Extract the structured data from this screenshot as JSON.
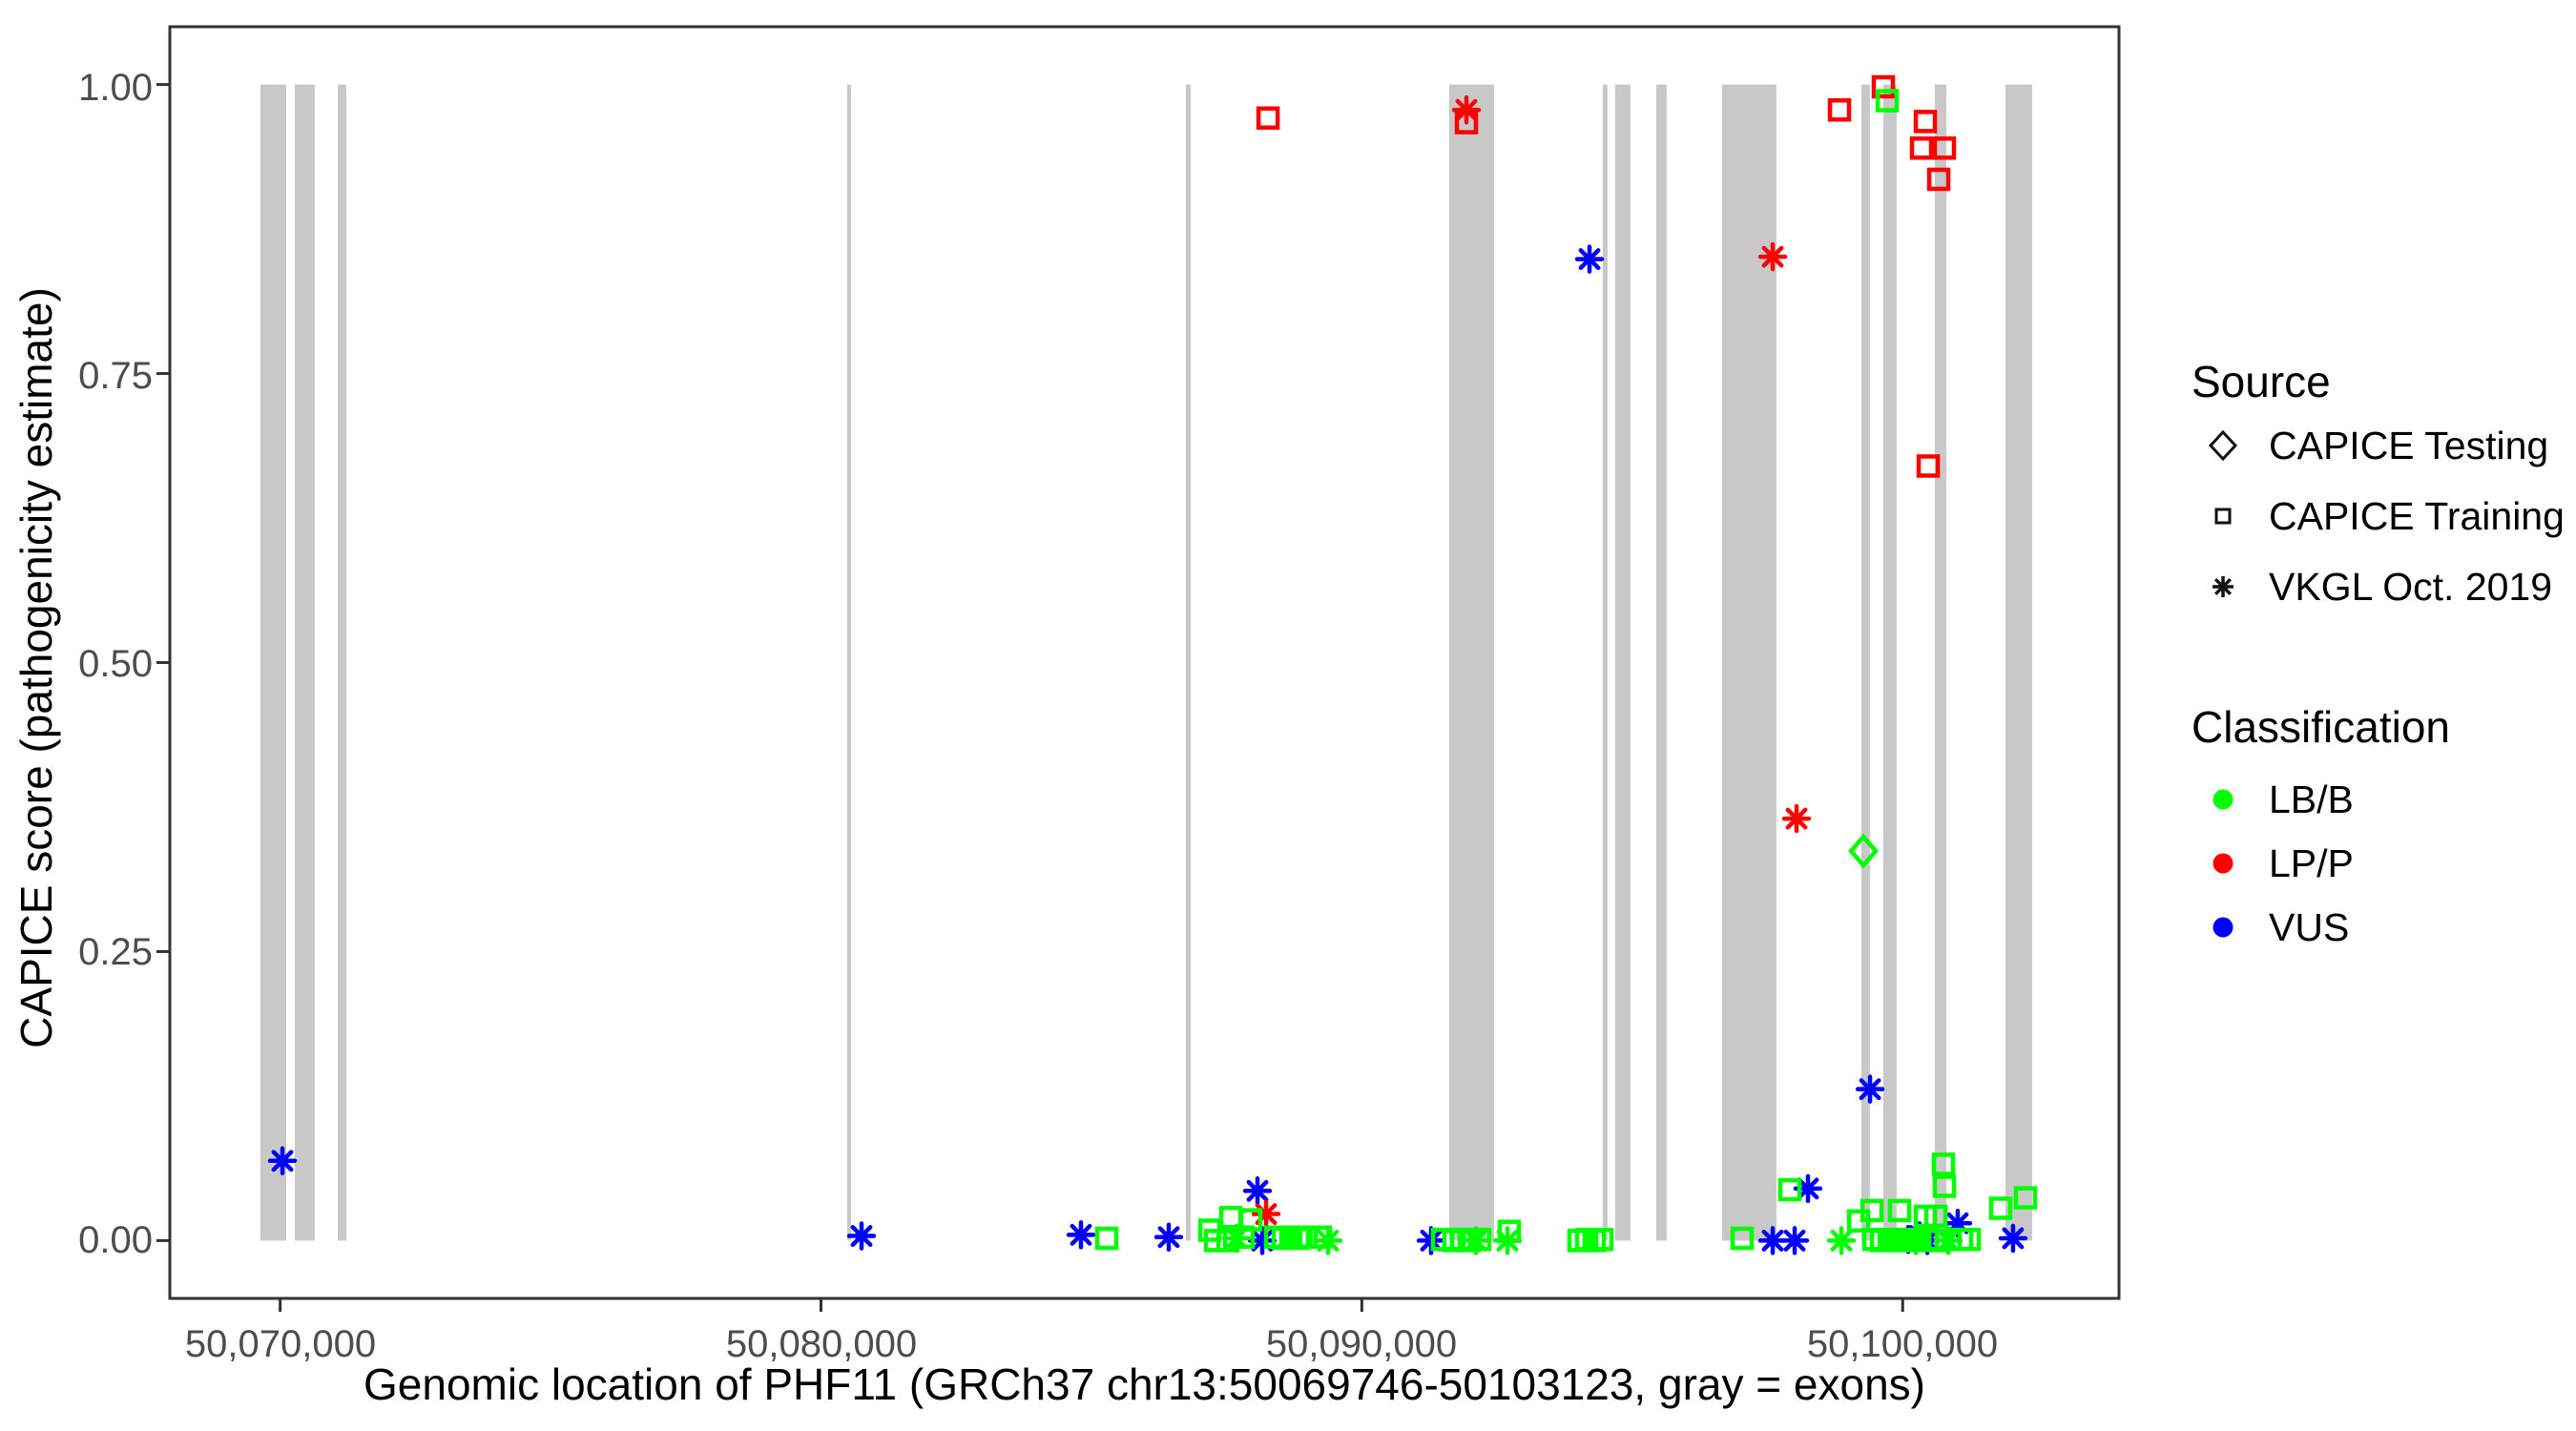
{
  "colors": {
    "lbb": "#00FF00",
    "lpp": "#FF0000",
    "vus": "#0000FF",
    "exon": "#C8C8C8",
    "axis_text": "#4D4D4D",
    "axis_line": "#333333",
    "legend_symbol": "#111111"
  },
  "legend": {
    "source": {
      "title": "Source",
      "items": [
        {
          "label": "CAPICE Testing",
          "symbol": "diamond-icon"
        },
        {
          "label": "CAPICE Training",
          "symbol": "square-icon"
        },
        {
          "label": "VKGL Oct. 2019",
          "symbol": "asterisk-icon"
        }
      ]
    },
    "classification": {
      "title": "Classification",
      "items": [
        {
          "label": "LB/B",
          "color": "#00FF00"
        },
        {
          "label": "LP/P",
          "color": "#FF0000"
        },
        {
          "label": "VUS",
          "color": "#0000FF"
        }
      ]
    }
  },
  "chart_data": {
    "type": "scatter",
    "title": "",
    "xlabel": "Genomic location of PHF11 (GRCh37 chr13:50069746-50103123, gray = exons)",
    "ylabel": "CAPICE score (pathogenicity estimate)",
    "xlim": [
      50067960,
      50104000
    ],
    "ylim": [
      -0.05,
      1.05
    ],
    "grid": false,
    "legend_position": "right",
    "x_ticks": [
      {
        "value": 50070000,
        "label": "50,070,000"
      },
      {
        "value": 50080000,
        "label": "50,080,000"
      },
      {
        "value": 50090000,
        "label": "50,090,000"
      },
      {
        "value": 50100000,
        "label": "50,100,000"
      }
    ],
    "y_ticks": [
      {
        "value": 1.0,
        "label": "1.00"
      },
      {
        "value": 0.75,
        "label": "0.75"
      },
      {
        "value": 0.5,
        "label": "0.50"
      },
      {
        "value": 0.25,
        "label": "0.25"
      },
      {
        "value": 0.0,
        "label": "0.00"
      }
    ],
    "exons": [
      [
        50069636,
        50070112
      ],
      [
        50070271,
        50070641
      ],
      [
        50071065,
        50071223
      ],
      [
        50080484,
        50080555
      ],
      [
        50086746,
        50086834
      ],
      [
        50091615,
        50092444
      ],
      [
        50094455,
        50094543
      ],
      [
        50094684,
        50094966
      ],
      [
        50095443,
        50095637
      ],
      [
        50096660,
        50097665
      ],
      [
        50099235,
        50099394
      ],
      [
        50099641,
        50099888
      ],
      [
        50100595,
        50100807
      ],
      [
        50101900,
        50102394
      ]
    ],
    "points": [
      {
        "bp": 50070042,
        "score": 0.069,
        "source": "vkgl",
        "cls": "VUS"
      },
      {
        "bp": 50080750,
        "score": 0.004,
        "source": "vkgl",
        "cls": "VUS"
      },
      {
        "bp": 50084807,
        "score": 0.005,
        "source": "vkgl",
        "cls": "VUS"
      },
      {
        "bp": 50086430,
        "score": 0.003,
        "source": "vkgl",
        "cls": "VUS"
      },
      {
        "bp": 50088071,
        "score": 0.043,
        "source": "vkgl",
        "cls": "VUS"
      },
      {
        "bp": 50088159,
        "score": 0.0,
        "source": "vkgl",
        "cls": "VUS"
      },
      {
        "bp": 50091281,
        "score": 0.0,
        "source": "vkgl",
        "cls": "VUS"
      },
      {
        "bp": 50094210,
        "score": 0.849,
        "source": "vkgl",
        "cls": "VUS"
      },
      {
        "bp": 50097597,
        "score": 0.0,
        "source": "vkgl",
        "cls": "VUS"
      },
      {
        "bp": 50098003,
        "score": 0.0,
        "source": "vkgl",
        "cls": "VUS"
      },
      {
        "bp": 50098249,
        "score": 0.045,
        "source": "vkgl",
        "cls": "VUS"
      },
      {
        "bp": 50099397,
        "score": 0.131,
        "source": "vkgl",
        "cls": "VUS"
      },
      {
        "bp": 50100102,
        "score": 0.001,
        "source": "vkgl",
        "cls": "VUS"
      },
      {
        "bp": 50100314,
        "score": 0.004,
        "source": "vkgl",
        "cls": "VUS"
      },
      {
        "bp": 50100455,
        "score": 0.0,
        "source": "vkgl",
        "cls": "VUS"
      },
      {
        "bp": 50101018,
        "score": 0.015,
        "source": "vkgl",
        "cls": "VUS"
      },
      {
        "bp": 50102041,
        "score": 0.002,
        "source": "vkgl",
        "cls": "VUS"
      },
      {
        "bp": 50088230,
        "score": 0.023,
        "source": "vkgl",
        "cls": "LP/P"
      },
      {
        "bp": 50091934,
        "score": 0.978,
        "source": "vkgl",
        "cls": "LP/P"
      },
      {
        "bp": 50097597,
        "score": 0.851,
        "source": "vkgl",
        "cls": "LP/P"
      },
      {
        "bp": 50098038,
        "score": 0.365,
        "source": "vkgl",
        "cls": "LP/P"
      },
      {
        "bp": 50087683,
        "score": 0.002,
        "source": "vkgl",
        "cls": "LB/B"
      },
      {
        "bp": 50089376,
        "score": 0.0,
        "source": "vkgl",
        "cls": "LB/B"
      },
      {
        "bp": 50092110,
        "score": 0.0,
        "source": "vkgl",
        "cls": "LB/B"
      },
      {
        "bp": 50092692,
        "score": 0.0,
        "source": "vkgl",
        "cls": "LB/B"
      },
      {
        "bp": 50098867,
        "score": 0.0,
        "source": "vkgl",
        "cls": "LB/B"
      },
      {
        "bp": 50100243,
        "score": 0.0,
        "source": "vkgl",
        "cls": "LB/B"
      },
      {
        "bp": 50100843,
        "score": 0.0,
        "source": "vkgl",
        "cls": "LB/B"
      },
      {
        "bp": 50088266,
        "score": 0.971,
        "source": "training",
        "cls": "LP/P"
      },
      {
        "bp": 50091934,
        "score": 0.967,
        "source": "training",
        "cls": "LP/P"
      },
      {
        "bp": 50098832,
        "score": 0.978,
        "source": "training",
        "cls": "LP/P"
      },
      {
        "bp": 50099643,
        "score": 0.998,
        "source": "training",
        "cls": "LP/P"
      },
      {
        "bp": 50100349,
        "score": 0.945,
        "source": "training",
        "cls": "LP/P"
      },
      {
        "bp": 50100420,
        "score": 0.968,
        "source": "training",
        "cls": "LP/P"
      },
      {
        "bp": 50100473,
        "score": 0.67,
        "source": "training",
        "cls": "LP/P"
      },
      {
        "bp": 50100667,
        "score": 0.918,
        "source": "training",
        "cls": "LP/P"
      },
      {
        "bp": 50100772,
        "score": 0.945,
        "source": "training",
        "cls": "LP/P"
      },
      {
        "bp": 50099714,
        "score": 0.986,
        "source": "training",
        "cls": "LB/B"
      },
      {
        "bp": 50085283,
        "score": 0.002,
        "source": "training",
        "cls": "LB/B"
      },
      {
        "bp": 50087189,
        "score": 0.009,
        "source": "training",
        "cls": "LB/B"
      },
      {
        "bp": 50087295,
        "score": 0.0,
        "source": "training",
        "cls": "LB/B"
      },
      {
        "bp": 50087524,
        "score": 0.0,
        "source": "training",
        "cls": "LB/B"
      },
      {
        "bp": 50087577,
        "score": 0.02,
        "source": "training",
        "cls": "LB/B"
      },
      {
        "bp": 50087806,
        "score": 0.003,
        "source": "training",
        "cls": "LB/B"
      },
      {
        "bp": 50087947,
        "score": 0.018,
        "source": "training",
        "cls": "LB/B"
      },
      {
        "bp": 50088406,
        "score": 0.003,
        "source": "training",
        "cls": "LB/B"
      },
      {
        "bp": 50088547,
        "score": 0.002,
        "source": "training",
        "cls": "LB/B"
      },
      {
        "bp": 50088688,
        "score": 0.003,
        "source": "training",
        "cls": "LB/B"
      },
      {
        "bp": 50088829,
        "score": 0.002,
        "source": "training",
        "cls": "LB/B"
      },
      {
        "bp": 50088970,
        "score": 0.003,
        "source": "training",
        "cls": "LB/B"
      },
      {
        "bp": 50089235,
        "score": 0.003,
        "source": "training",
        "cls": "LB/B"
      },
      {
        "bp": 50091493,
        "score": 0.001,
        "source": "training",
        "cls": "LB/B"
      },
      {
        "bp": 50091704,
        "score": 0.0,
        "source": "training",
        "cls": "LB/B"
      },
      {
        "bp": 50091845,
        "score": 0.001,
        "source": "training",
        "cls": "LB/B"
      },
      {
        "bp": 50091986,
        "score": 0.0,
        "source": "training",
        "cls": "LB/B"
      },
      {
        "bp": 50092180,
        "score": 0.001,
        "source": "training",
        "cls": "LB/B"
      },
      {
        "bp": 50092727,
        "score": 0.008,
        "source": "training",
        "cls": "LB/B"
      },
      {
        "bp": 50094015,
        "score": 0.0,
        "source": "training",
        "cls": "LB/B"
      },
      {
        "bp": 50094156,
        "score": 0.001,
        "source": "training",
        "cls": "LB/B"
      },
      {
        "bp": 50094297,
        "score": 0.0,
        "source": "training",
        "cls": "LB/B"
      },
      {
        "bp": 50094438,
        "score": 0.001,
        "source": "training",
        "cls": "LB/B"
      },
      {
        "bp": 50097032,
        "score": 0.002,
        "source": "training",
        "cls": "LB/B"
      },
      {
        "bp": 50097914,
        "score": 0.044,
        "source": "training",
        "cls": "LB/B"
      },
      {
        "bp": 50099185,
        "score": 0.017,
        "source": "training",
        "cls": "LB/B"
      },
      {
        "bp": 50099432,
        "score": 0.026,
        "source": "training",
        "cls": "LB/B"
      },
      {
        "bp": 50099467,
        "score": 0.001,
        "source": "training",
        "cls": "LB/B"
      },
      {
        "bp": 50099608,
        "score": 0.0,
        "source": "training",
        "cls": "LB/B"
      },
      {
        "bp": 50099749,
        "score": 0.001,
        "source": "training",
        "cls": "LB/B"
      },
      {
        "bp": 50099890,
        "score": 0.0,
        "source": "training",
        "cls": "LB/B"
      },
      {
        "bp": 50099943,
        "score": 0.026,
        "source": "training",
        "cls": "LB/B"
      },
      {
        "bp": 50100031,
        "score": 0.001,
        "source": "training",
        "cls": "LB/B"
      },
      {
        "bp": 50100173,
        "score": 0.0,
        "source": "training",
        "cls": "LB/B"
      },
      {
        "bp": 50100314,
        "score": 0.001,
        "source": "training",
        "cls": "LB/B"
      },
      {
        "bp": 50100420,
        "score": 0.021,
        "source": "training",
        "cls": "LB/B"
      },
      {
        "bp": 50100455,
        "score": 0.001,
        "source": "training",
        "cls": "LB/B"
      },
      {
        "bp": 50100596,
        "score": 0.0,
        "source": "training",
        "cls": "LB/B"
      },
      {
        "bp": 50100614,
        "score": 0.021,
        "source": "training",
        "cls": "LB/B"
      },
      {
        "bp": 50100754,
        "score": 0.066,
        "source": "training",
        "cls": "LB/B"
      },
      {
        "bp": 50100772,
        "score": 0.047,
        "source": "training",
        "cls": "LB/B"
      },
      {
        "bp": 50101090,
        "score": 0.001,
        "source": "training",
        "cls": "LB/B"
      },
      {
        "bp": 50101231,
        "score": 0.001,
        "source": "training",
        "cls": "LB/B"
      },
      {
        "bp": 50101812,
        "score": 0.028,
        "source": "training",
        "cls": "LB/B"
      },
      {
        "bp": 50102271,
        "score": 0.037,
        "source": "training",
        "cls": "LB/B"
      },
      {
        "bp": 50099273,
        "score": 0.337,
        "source": "testing",
        "cls": "LB/B"
      }
    ]
  }
}
